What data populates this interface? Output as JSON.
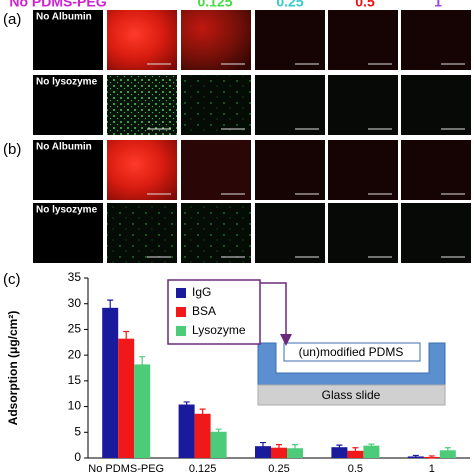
{
  "header": {
    "columns": [
      "No PDMS-PEG",
      "0.125",
      "0.25",
      "0.5",
      "1"
    ]
  },
  "panels": [
    {
      "label": "(a)",
      "rows": [
        "No Albumin",
        "No lysozyme"
      ]
    },
    {
      "label": "(b)",
      "rows": [
        "No Albumin",
        "No lysozyme"
      ]
    },
    {
      "label": "(c)"
    }
  ],
  "inset": {
    "top": "(un)modified PDMS",
    "bottom": "Glass slide"
  },
  "chart_data": {
    "type": "bar",
    "y_label": "Adsorption (μg/cm²)",
    "categories": [
      "No PDMS-PEG",
      "0.125",
      "0.25",
      "0.5",
      "1"
    ],
    "series": [
      {
        "name": "IgG",
        "color": "#1a1a9c",
        "values": [
          29.2,
          10.4,
          2.3,
          2.1,
          0.3
        ],
        "errors": [
          1.5,
          0.5,
          0.7,
          0.4,
          0.2
        ]
      },
      {
        "name": "BSA",
        "color": "#f01818",
        "values": [
          23.2,
          8.6,
          2.0,
          1.4,
          0.2
        ],
        "errors": [
          1.4,
          0.9,
          0.6,
          0.6,
          0.2
        ]
      },
      {
        "name": "Lysozyme",
        "color": "#4ccc78",
        "values": [
          18.2,
          5.1,
          1.9,
          2.4,
          1.5
        ],
        "errors": [
          1.5,
          0.5,
          0.7,
          0.3,
          0.5
        ]
      }
    ],
    "ylim": [
      0,
      35
    ],
    "yticks": [
      0,
      5,
      10,
      15,
      20,
      25,
      30,
      35
    ],
    "legend": "top"
  }
}
